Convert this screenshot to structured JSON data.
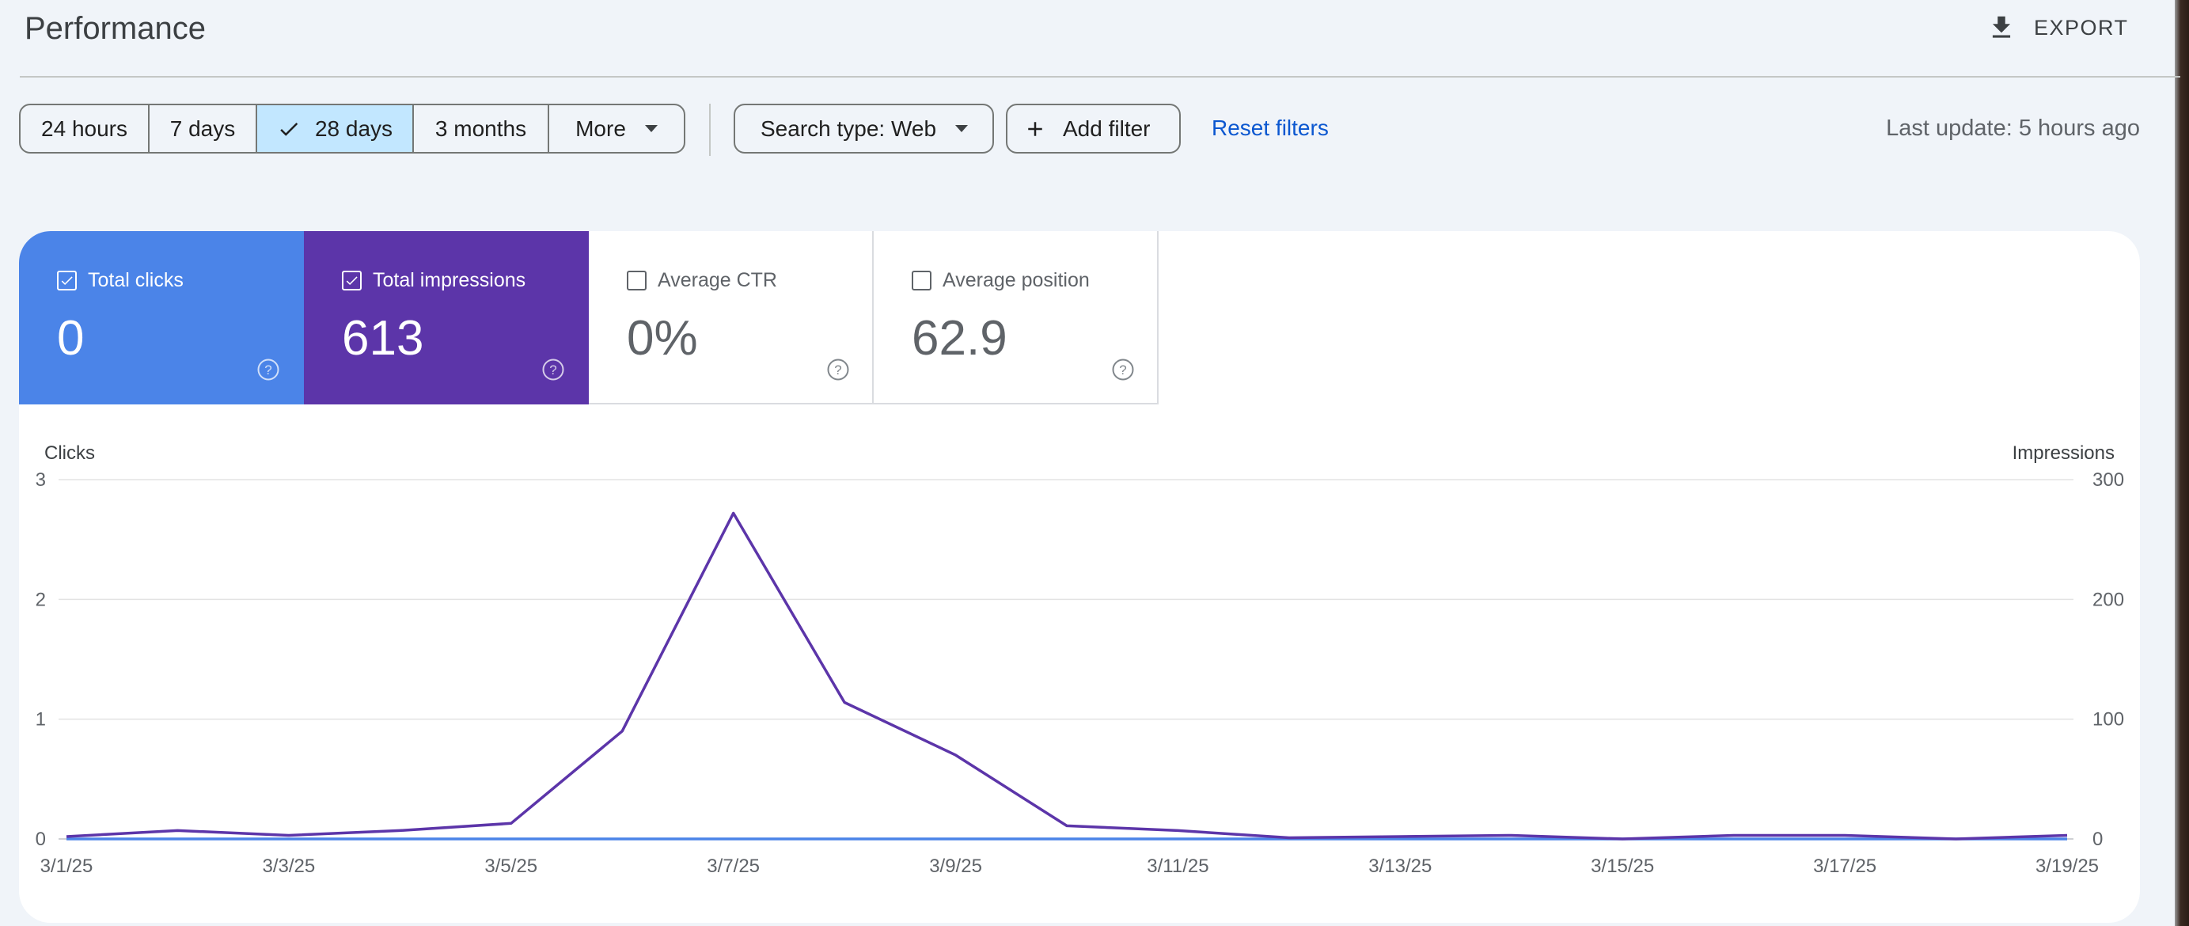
{
  "header": {
    "title": "Performance",
    "export_label": "EXPORT"
  },
  "filters": {
    "date_ranges": [
      {
        "label": "24 hours",
        "selected": false
      },
      {
        "label": "7 days",
        "selected": false
      },
      {
        "label": "28 days",
        "selected": true
      },
      {
        "label": "3 months",
        "selected": false
      },
      {
        "label": "More",
        "selected": false
      }
    ],
    "search_type_label": "Search type: Web",
    "add_filter_label": "Add filter",
    "reset_label": "Reset filters",
    "last_update": "Last update: 5 hours ago"
  },
  "metrics": {
    "clicks": {
      "label": "Total clicks",
      "value": "0",
      "checked": true,
      "color": "#4b84e8"
    },
    "impressions": {
      "label": "Total impressions",
      "value": "613",
      "checked": true,
      "color": "#5c35a9"
    },
    "ctr": {
      "label": "Average CTR",
      "value": "0%",
      "checked": false
    },
    "position": {
      "label": "Average position",
      "value": "62.9",
      "checked": false
    }
  },
  "chart_data": {
    "type": "line",
    "left_axis_label": "Clicks",
    "right_axis_label": "Impressions",
    "left_ylim": [
      0,
      3
    ],
    "right_ylim": [
      0,
      300
    ],
    "left_ticks": [
      "0",
      "1",
      "2",
      "3"
    ],
    "right_ticks": [
      "0",
      "100",
      "200",
      "300"
    ],
    "x_tick_labels": [
      "3/1/25",
      "3/3/25",
      "3/5/25",
      "3/7/25",
      "3/9/25",
      "3/11/25",
      "3/13/25",
      "3/15/25",
      "3/17/25",
      "3/19/25"
    ],
    "x": [
      "3/1/25",
      "3/2/25",
      "3/3/25",
      "3/4/25",
      "3/5/25",
      "3/6/25",
      "3/7/25",
      "3/8/25",
      "3/9/25",
      "3/10/25",
      "3/11/25",
      "3/12/25",
      "3/13/25",
      "3/14/25",
      "3/15/25",
      "3/16/25",
      "3/17/25",
      "3/18/25",
      "3/19/25"
    ],
    "series": [
      {
        "name": "Clicks",
        "axis": "left",
        "color": "#4b84e8",
        "values": [
          0,
          0,
          0,
          0,
          0,
          0,
          0,
          0,
          0,
          0,
          0,
          0,
          0,
          0,
          0,
          0,
          0,
          0,
          0
        ]
      },
      {
        "name": "Impressions",
        "axis": "right",
        "color": "#5c35a9",
        "values": [
          2,
          7,
          3,
          7,
          13,
          90,
          272,
          114,
          70,
          11,
          7,
          1,
          2,
          3,
          0,
          3,
          3,
          0,
          3
        ]
      }
    ],
    "grid": true
  }
}
